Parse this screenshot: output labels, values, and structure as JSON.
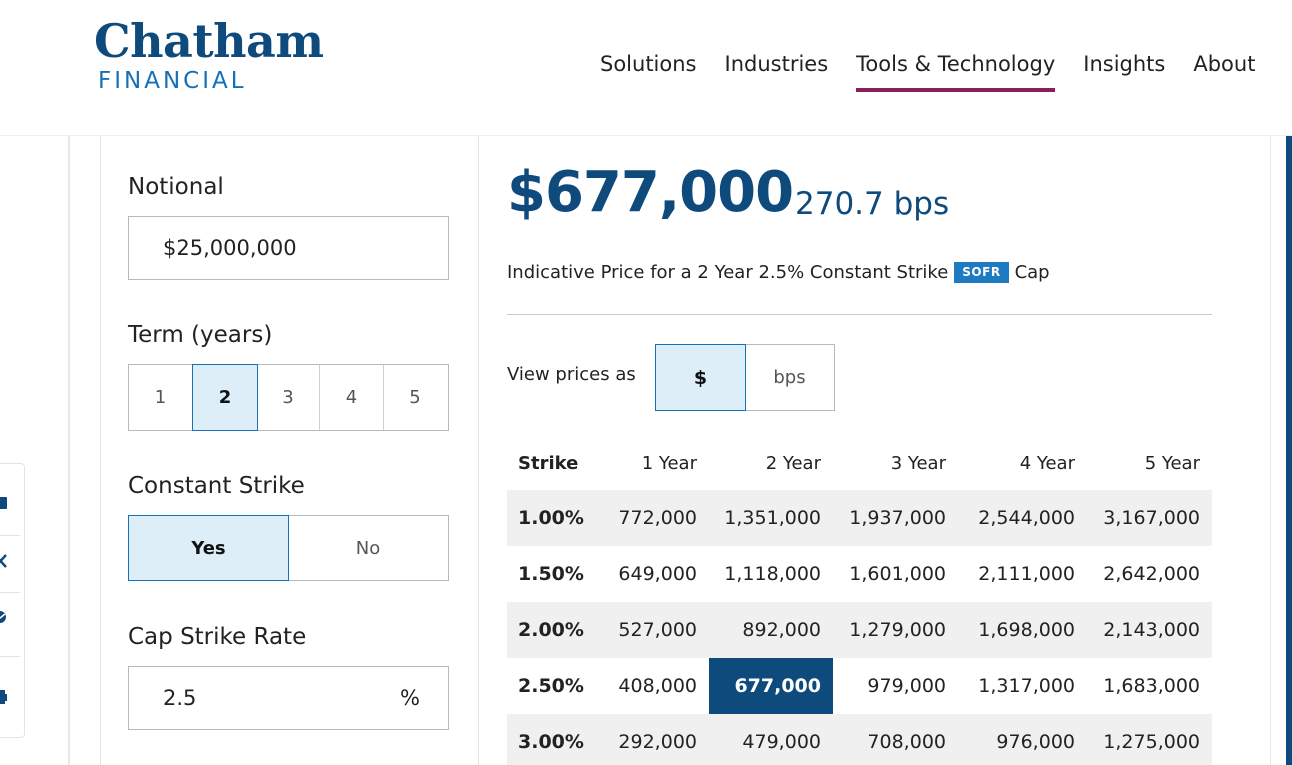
{
  "header": {
    "logo_main": "Chatham",
    "logo_sub": "FINANCIAL",
    "nav": [
      "Solutions",
      "Industries",
      "Tools & Technology",
      "Insights",
      "About"
    ],
    "active_nav": "Tools & Technology",
    "active_color": "#8a1f5c"
  },
  "form": {
    "notional_label": "Notional",
    "notional_value": "$25,000,000",
    "term_label": "Term (years)",
    "term_options": [
      "1",
      "2",
      "3",
      "4",
      "5"
    ],
    "term_selected": "2",
    "constant_strike_label": "Constant Strike",
    "constant_strike_options": [
      "Yes",
      "No"
    ],
    "constant_strike_selected": "Yes",
    "cap_strike_label": "Cap Strike Rate",
    "cap_strike_value": "2.5",
    "cap_strike_unit": "%"
  },
  "result": {
    "price": "$677,000",
    "bps": "270.7 bps",
    "indicative_prefix": "Indicative Price for a 2 Year 2.5% Constant Strike",
    "badge": "SOFR",
    "indicative_suffix": "Cap",
    "view_label": "View prices as",
    "view_options": [
      "$",
      "bps"
    ],
    "view_selected": "$"
  },
  "table": {
    "headers": [
      "Strike",
      "1 Year",
      "2 Year",
      "3 Year",
      "4 Year",
      "5 Year"
    ],
    "rows": [
      [
        "1.00%",
        "772,000",
        "1,351,000",
        "1,937,000",
        "2,544,000",
        "3,167,000"
      ],
      [
        "1.50%",
        "649,000",
        "1,118,000",
        "1,601,000",
        "2,111,000",
        "2,642,000"
      ],
      [
        "2.00%",
        "527,000",
        "892,000",
        "1,279,000",
        "1,698,000",
        "2,143,000"
      ],
      [
        "2.50%",
        "408,000",
        "677,000",
        "979,000",
        "1,317,000",
        "1,683,000"
      ],
      [
        "3.00%",
        "292,000",
        "479,000",
        "708,000",
        "976,000",
        "1,275,000"
      ]
    ],
    "highlight": {
      "row": 3,
      "col": 2
    }
  },
  "colors": {
    "brand_navy": "#0e4a7b",
    "brand_blue": "#1570b8",
    "selected_bg": "#ddeef9",
    "row_shade": "#f0f0f0"
  },
  "side_rail_icons": [
    "linkedin-icon",
    "x-icon",
    "email-icon",
    "print-icon"
  ]
}
